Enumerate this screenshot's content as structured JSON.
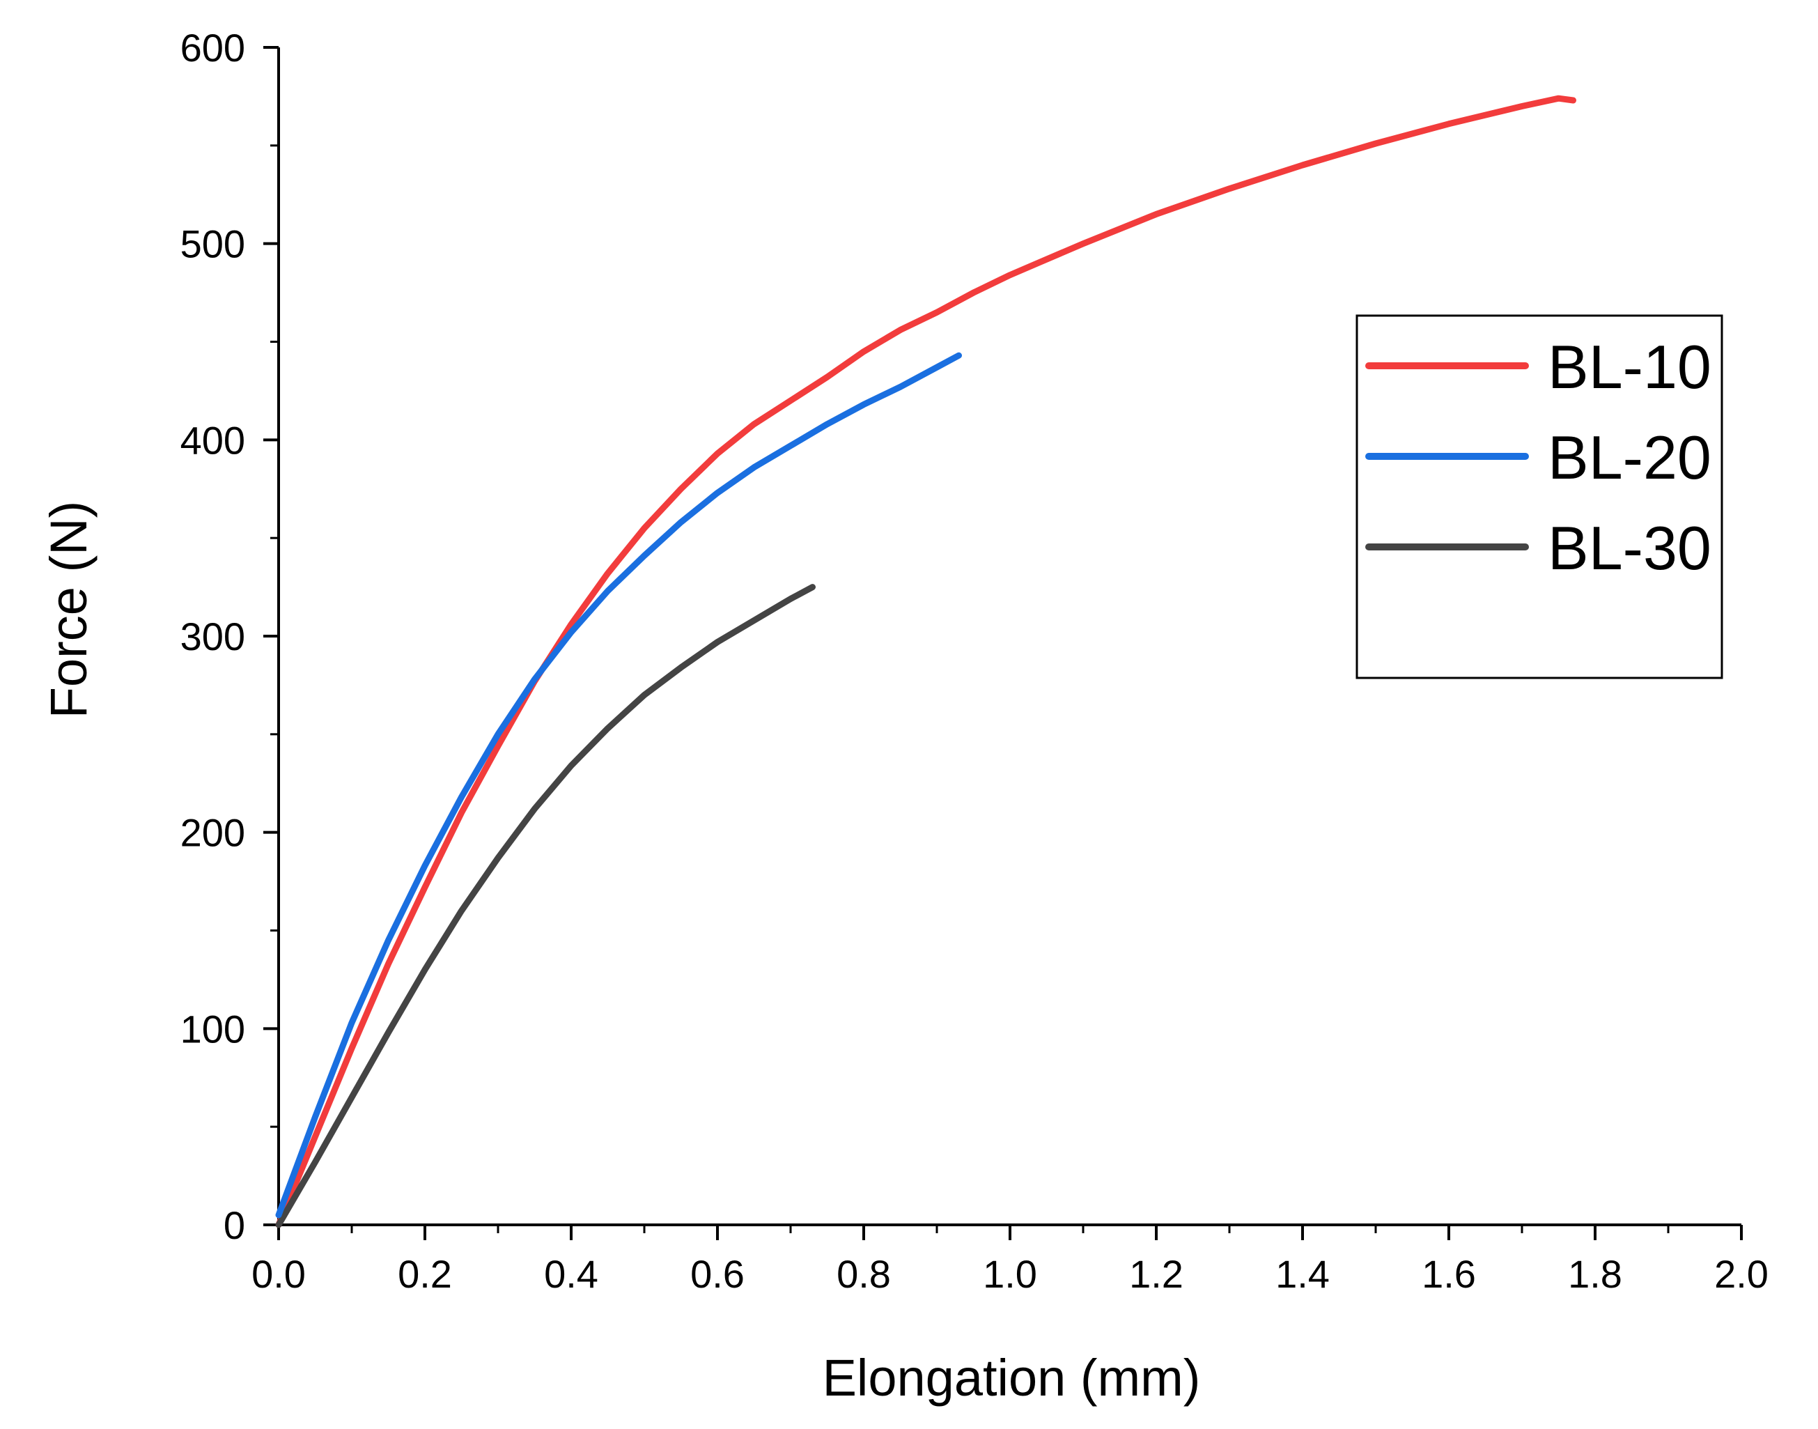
{
  "chart_data": {
    "type": "line",
    "title": "",
    "xlabel": "Elongation (mm)",
    "ylabel": "Force (N)",
    "xlim": [
      0,
      2.0
    ],
    "ylim": [
      0,
      600
    ],
    "x_ticks": [
      "0.0",
      "0.2",
      "0.4",
      "0.6",
      "0.8",
      "1.0",
      "1.2",
      "1.4",
      "1.6",
      "1.8",
      "2.0"
    ],
    "y_ticks": [
      "0",
      "100",
      "200",
      "300",
      "400",
      "500",
      "600"
    ],
    "x_tick_values": [
      0,
      0.2,
      0.4,
      0.6,
      0.8,
      1.0,
      1.2,
      1.4,
      1.6,
      1.8,
      2.0
    ],
    "y_tick_values": [
      0,
      100,
      200,
      300,
      400,
      500,
      600
    ],
    "x_minor_step": 0.1,
    "y_minor_step": 50,
    "grid": false,
    "legend_position": "right",
    "series": [
      {
        "name": "BL-10",
        "color": "#f23c3c",
        "x": [
          0,
          0.02,
          0.05,
          0.1,
          0.15,
          0.2,
          0.25,
          0.3,
          0.35,
          0.4,
          0.45,
          0.5,
          0.55,
          0.6,
          0.65,
          0.7,
          0.75,
          0.8,
          0.85,
          0.9,
          0.95,
          1.0,
          1.1,
          1.2,
          1.3,
          1.4,
          1.5,
          1.6,
          1.7,
          1.75,
          1.77
        ],
        "y": [
          0,
          18,
          45,
          90,
          133,
          172,
          210,
          244,
          277,
          306,
          332,
          355,
          375,
          393,
          408,
          420,
          432,
          445,
          456,
          465,
          475,
          484,
          500,
          515,
          528,
          540,
          551,
          561,
          570,
          574,
          573
        ]
      },
      {
        "name": "BL-20",
        "color": "#1a6fe0",
        "x": [
          0,
          0.02,
          0.05,
          0.1,
          0.15,
          0.2,
          0.25,
          0.3,
          0.35,
          0.4,
          0.45,
          0.5,
          0.55,
          0.6,
          0.65,
          0.7,
          0.75,
          0.8,
          0.85,
          0.9,
          0.93
        ],
        "y": [
          5,
          25,
          55,
          103,
          145,
          183,
          218,
          250,
          278,
          302,
          323,
          341,
          358,
          373,
          386,
          397,
          408,
          418,
          427,
          437,
          443
        ]
      },
      {
        "name": "BL-30",
        "color": "#444444",
        "x": [
          0,
          0.05,
          0.1,
          0.15,
          0.2,
          0.25,
          0.3,
          0.35,
          0.4,
          0.45,
          0.5,
          0.55,
          0.6,
          0.65,
          0.7,
          0.73
        ],
        "y": [
          0,
          32,
          65,
          98,
          130,
          160,
          187,
          212,
          234,
          253,
          270,
          284,
          297,
          308,
          319,
          325
        ]
      }
    ]
  }
}
